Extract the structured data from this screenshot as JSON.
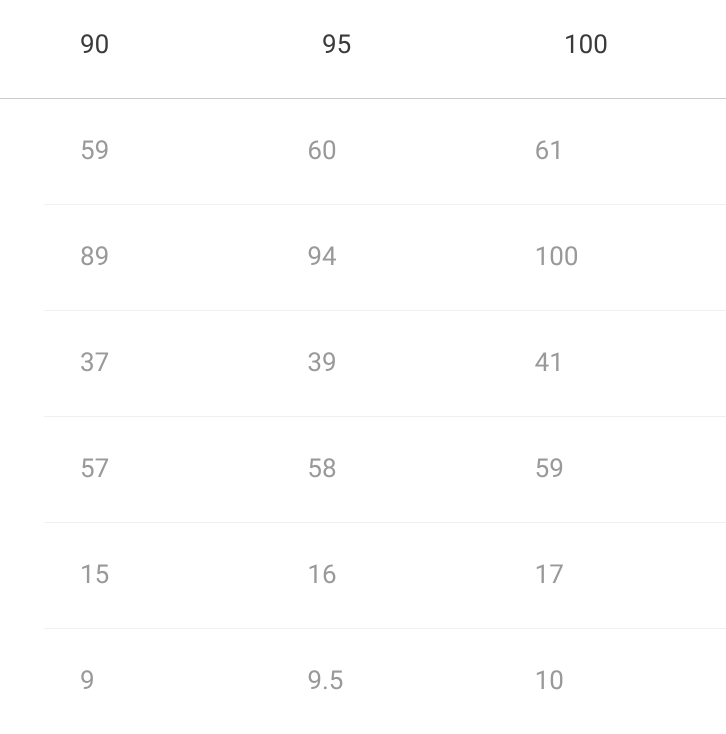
{
  "table": {
    "type": "table",
    "header_color": "#3a3a3a",
    "body_color": "#999999",
    "background_color": "#ffffff",
    "header_border_color": "#cccccc",
    "row_border_color": "#f0f0f0",
    "font_size": 26,
    "columns": [
      "90",
      "95",
      "100"
    ],
    "rows": [
      [
        "59",
        "60",
        "61"
      ],
      [
        "89",
        "94",
        "100"
      ],
      [
        "37",
        "39",
        "41"
      ],
      [
        "57",
        "58",
        "59"
      ],
      [
        "15",
        "16",
        "17"
      ],
      [
        "9",
        "9.5",
        "10"
      ]
    ]
  }
}
